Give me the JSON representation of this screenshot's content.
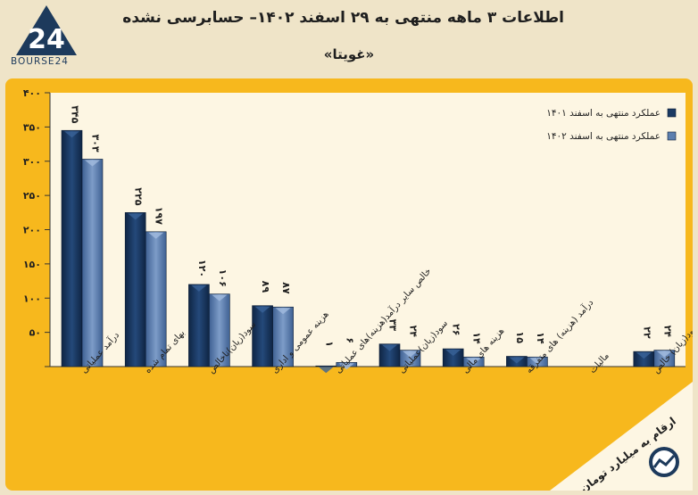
{
  "header": {
    "logo_text": "BOURSE24",
    "title": "اطلاعات ۳ ماهه منتهی به ۲۹ اسفند ۱۴۰۲– حسابرسی نشده",
    "subtitle": "«غویتا»"
  },
  "footer": {
    "note": "ارقام به میلیارد تومان"
  },
  "colors": {
    "frame": "#f7b81d",
    "plot_bg": "#fdf6e3",
    "series1": "#1b3a63",
    "series2": "#5d7fae",
    "text": "#1f1f1f"
  },
  "chart_data": {
    "type": "bar",
    "title": "",
    "xlabel": "",
    "ylabel": "",
    "ylim": [
      0,
      400
    ],
    "yticks": [
      "۰",
      "۵۰",
      "۱۰۰",
      "۱۵۰",
      "۲۰۰",
      "۲۵۰",
      "۳۰۰",
      "۳۵۰",
      "۴۰۰"
    ],
    "grid": false,
    "legend_position": "top-right",
    "categories": [
      "درآمد عملیاتی",
      "بهای تمام شده",
      "سود(زیان)ناخالص",
      "هزینه عمومی و اداری",
      "خالص سایر درآمد(هزینه)های عملیاتی",
      "سود(زیان)عملیاتی",
      "هزینه های مالی",
      "درآمد (هزینه) های متفرقه",
      "مالیات",
      "سود(زیان) خالص"
    ],
    "series": [
      {
        "name": "عملکرد منتهی به اسفند ۱۴۰۱",
        "values": [
          345,
          225,
          120,
          89,
          1,
          33,
          26,
          15,
          0,
          22
        ],
        "labels": [
          "۳۴۵",
          "۲۲۵",
          "۱۲۰",
          "۸۹",
          "۱",
          "۳۳",
          "۲۶",
          "۱۵",
          "",
          "۲۲"
        ]
      },
      {
        "name": "عملکرد منتهی به اسفند ۱۴۰۲",
        "values": [
          303,
          197,
          106,
          87,
          6,
          24,
          14,
          14,
          0,
          24
        ],
        "labels": [
          "۳۰۳",
          "۱۹۷",
          "۱۰۶",
          "۸۷",
          "۶",
          "۲۴",
          "۱۴",
          "۱۴",
          "",
          "۲۴"
        ]
      }
    ]
  }
}
